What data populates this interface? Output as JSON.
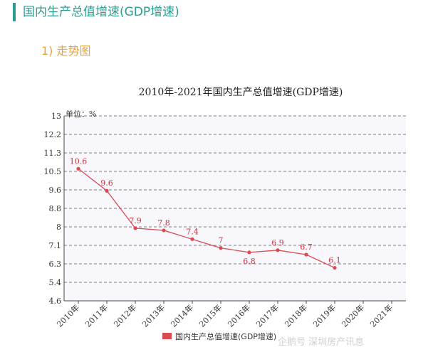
{
  "header": {
    "title": "国内生产总值增速(GDP增速)"
  },
  "subheader": {
    "title": "1) 走势图"
  },
  "watermark": {
    "text": "企鹅号 深圳房产讯息"
  },
  "chart_data": {
    "type": "line",
    "title": "2010年-2021年国内生产总值增速(GDP增速)",
    "unit_label": "单位：%",
    "categories": [
      "2010年",
      "2011年",
      "2012年",
      "2013年",
      "2014年",
      "2015年",
      "2016年",
      "2017年",
      "2018年",
      "2019年",
      "2020年",
      "2021年"
    ],
    "y_ticks": [
      "13",
      "12.2",
      "11.3",
      "10.5",
      "9.6",
      "8.8",
      "8",
      "7.1",
      "6.3",
      "5.4",
      "4.6"
    ],
    "ylim": [
      4.6,
      13
    ],
    "grid": true,
    "legend_position": "bottom",
    "colors": {
      "line": "#d94b50",
      "plot_bg": "#f7f7fc",
      "grid": "#555555"
    },
    "series": [
      {
        "name": "国内生产总值增速(GDP增速)",
        "values": [
          10.6,
          9.6,
          7.9,
          7.8,
          7.4,
          7,
          6.8,
          6.9,
          6.7,
          6.1,
          null,
          null
        ],
        "labels": [
          "10.6",
          "9.6",
          "7.9",
          "7.8",
          "7.4",
          "7",
          "6.8",
          "6.9",
          "6.7",
          "6.1",
          "",
          ""
        ]
      }
    ]
  }
}
